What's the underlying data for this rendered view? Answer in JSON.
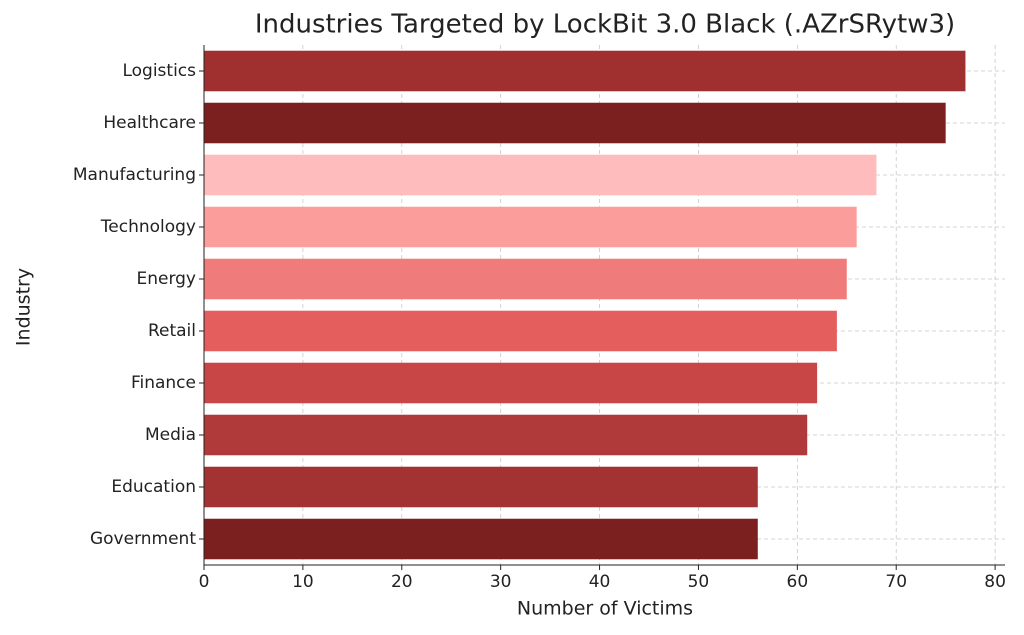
{
  "chart_data": {
    "type": "barh",
    "title": "Industries Targeted by LockBit 3.0 Black (.AZrSRytw3)",
    "x_label": "Number of Victims",
    "y_label": "Industry",
    "categories": [
      "Logistics",
      "Healthcare",
      "Manufacturing",
      "Technology",
      "Energy",
      "Retail",
      "Finance",
      "Media",
      "Education",
      "Government"
    ],
    "values": [
      77,
      75,
      68,
      66,
      65,
      64,
      62,
      61,
      56,
      56
    ],
    "colors": [
      "#a03030",
      "#7b1f1f",
      "#ffbcbc",
      "#fb9e9b",
      "#f07b7b",
      "#e45e5e",
      "#c94646",
      "#b03a3a",
      "#a33333",
      "#7b1f1f"
    ],
    "xlim": [
      0,
      81
    ],
    "xticks": [
      0,
      10,
      20,
      30,
      40,
      50,
      60,
      70,
      80
    ],
    "grid": true
  }
}
